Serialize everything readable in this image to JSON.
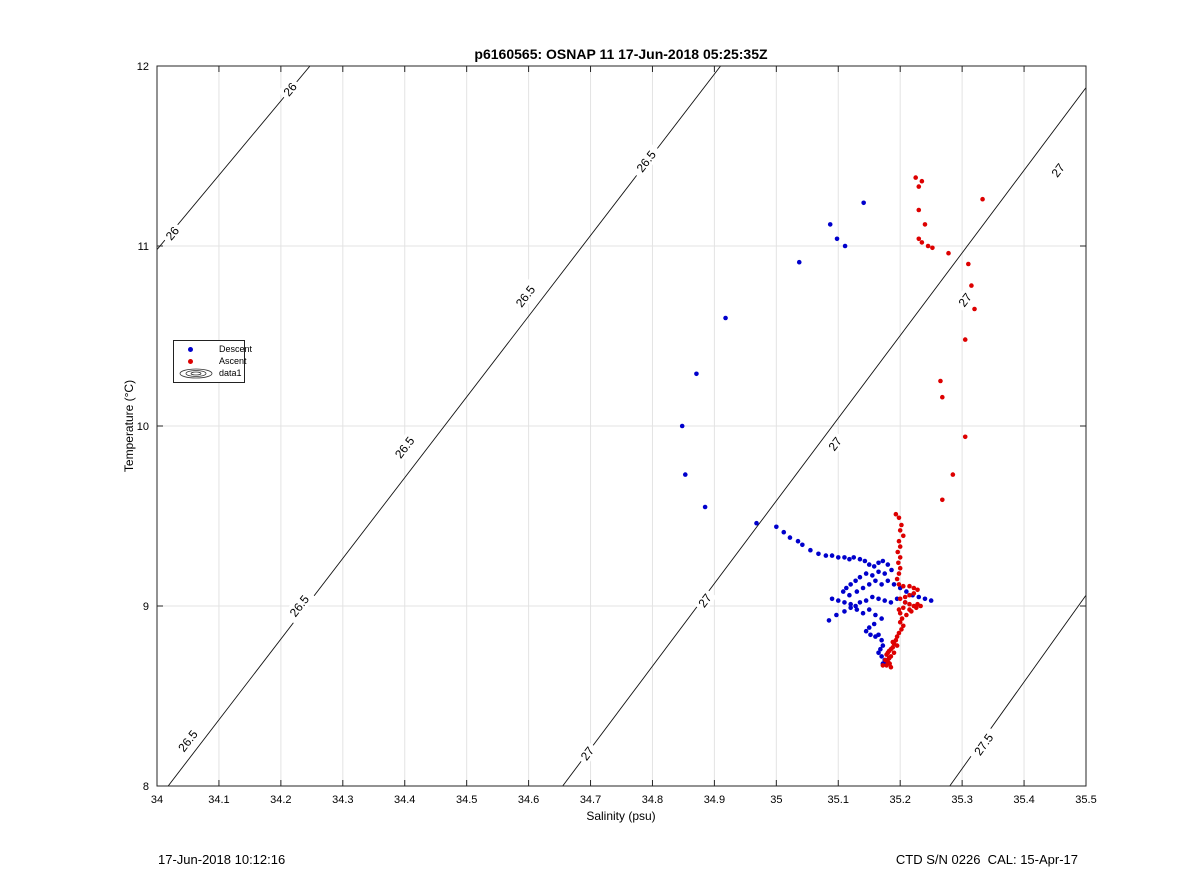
{
  "figure": {
    "title": "p6160565: OSNAP 11 17-Jun-2018 05:25:35Z",
    "footer_left": "17-Jun-2018 10:12:16",
    "footer_right": "CTD S/N 0226  CAL: 15-Apr-17"
  },
  "legend": [
    {
      "label": "Descent",
      "color": "#0000cc"
    },
    {
      "label": "Ascent",
      "color": "#dd0000"
    },
    {
      "label": "data1",
      "color": "#333333"
    }
  ],
  "chart_data": {
    "type": "scatter",
    "title": "p6160565: OSNAP 11 17-Jun-2018 05:25:35Z",
    "xlabel": "Salinity (psu)",
    "ylabel": "Temperature (°C)",
    "xlim": [
      34,
      35.5
    ],
    "ylim": [
      8,
      12
    ],
    "xticks": [
      "34",
      "34.1",
      "34.2",
      "34.3",
      "34.4",
      "34.5",
      "34.6",
      "34.7",
      "34.8",
      "34.9",
      "35",
      "35.1",
      "35.2",
      "35.3",
      "35.4",
      "35.5"
    ],
    "yticks": [
      "8",
      "9",
      "10",
      "11",
      "12"
    ],
    "grid": true,
    "legend_placement": "left-middle",
    "contours": [
      {
        "level": "26",
        "points": [
          [
            34.0,
            10.98
          ],
          [
            34.247,
            12.0
          ]
        ],
        "labels": [
          [
            34.025,
            11.07
          ],
          [
            34.215,
            11.87
          ]
        ]
      },
      {
        "level": "26.5",
        "points": [
          [
            34.018,
            8.0
          ],
          [
            34.91,
            12.0
          ]
        ],
        "labels": [
          [
            34.05,
            8.25
          ],
          [
            34.23,
            9.0
          ],
          [
            34.4,
            9.88
          ],
          [
            34.595,
            10.72
          ],
          [
            34.79,
            11.47
          ]
        ]
      },
      {
        "level": "27",
        "points": [
          [
            34.655,
            8.0
          ],
          [
            35.5,
            11.88
          ]
        ],
        "labels": [
          [
            34.695,
            8.18
          ],
          [
            34.885,
            9.03
          ],
          [
            35.095,
            9.9
          ],
          [
            35.305,
            10.7
          ],
          [
            35.455,
            11.42
          ]
        ]
      },
      {
        "level": "27.5",
        "points": [
          [
            35.28,
            8.0
          ],
          [
            35.5,
            9.06
          ]
        ],
        "labels": [
          [
            35.335,
            8.23
          ]
        ]
      }
    ],
    "series": [
      {
        "name": "Descent",
        "color": "#0000cc",
        "points": [
          [
            35.141,
            11.24
          ],
          [
            35.087,
            11.12
          ],
          [
            35.098,
            11.04
          ],
          [
            35.111,
            11.0
          ],
          [
            35.037,
            10.91
          ],
          [
            34.918,
            10.6
          ],
          [
            34.871,
            10.29
          ],
          [
            34.848,
            10.0
          ],
          [
            34.853,
            9.73
          ],
          [
            34.885,
            9.55
          ],
          [
            34.968,
            9.46
          ],
          [
            35.0,
            9.44
          ],
          [
            35.012,
            9.41
          ],
          [
            35.022,
            9.38
          ],
          [
            35.035,
            9.36
          ],
          [
            35.042,
            9.34
          ],
          [
            35.055,
            9.31
          ],
          [
            35.068,
            9.29
          ],
          [
            35.08,
            9.28
          ],
          [
            35.09,
            9.28
          ],
          [
            35.1,
            9.27
          ],
          [
            35.11,
            9.27
          ],
          [
            35.118,
            9.26
          ],
          [
            35.125,
            9.27
          ],
          [
            35.135,
            9.26
          ],
          [
            35.143,
            9.25
          ],
          [
            35.15,
            9.23
          ],
          [
            35.158,
            9.22
          ],
          [
            35.165,
            9.24
          ],
          [
            35.172,
            9.25
          ],
          [
            35.18,
            9.23
          ],
          [
            35.186,
            9.2
          ],
          [
            35.175,
            9.18
          ],
          [
            35.165,
            9.19
          ],
          [
            35.155,
            9.17
          ],
          [
            35.145,
            9.18
          ],
          [
            35.135,
            9.16
          ],
          [
            35.128,
            9.14
          ],
          [
            35.12,
            9.12
          ],
          [
            35.113,
            9.1
          ],
          [
            35.108,
            9.08
          ],
          [
            35.118,
            9.06
          ],
          [
            35.13,
            9.08
          ],
          [
            35.14,
            9.1
          ],
          [
            35.15,
            9.12
          ],
          [
            35.16,
            9.14
          ],
          [
            35.17,
            9.12
          ],
          [
            35.18,
            9.14
          ],
          [
            35.19,
            9.12
          ],
          [
            35.2,
            9.1
          ],
          [
            35.21,
            9.08
          ],
          [
            35.22,
            9.06
          ],
          [
            35.23,
            9.05
          ],
          [
            35.24,
            9.04
          ],
          [
            35.25,
            9.03
          ],
          [
            35.208,
            9.02
          ],
          [
            35.195,
            9.04
          ],
          [
            35.185,
            9.02
          ],
          [
            35.175,
            9.03
          ],
          [
            35.165,
            9.04
          ],
          [
            35.155,
            9.05
          ],
          [
            35.145,
            9.03
          ],
          [
            35.135,
            9.02
          ],
          [
            35.128,
            9.0
          ],
          [
            35.12,
            9.01
          ],
          [
            35.11,
            9.02
          ],
          [
            35.1,
            9.03
          ],
          [
            35.09,
            9.04
          ],
          [
            35.085,
            8.92
          ],
          [
            35.097,
            8.95
          ],
          [
            35.11,
            8.97
          ],
          [
            35.12,
            8.99
          ],
          [
            35.13,
            8.98
          ],
          [
            35.14,
            8.96
          ],
          [
            35.15,
            8.98
          ],
          [
            35.16,
            8.95
          ],
          [
            35.17,
            8.93
          ],
          [
            35.158,
            8.9
          ],
          [
            35.15,
            8.88
          ],
          [
            35.145,
            8.86
          ],
          [
            35.152,
            8.84
          ],
          [
            35.16,
            8.83
          ],
          [
            35.165,
            8.84
          ],
          [
            35.17,
            8.81
          ],
          [
            35.172,
            8.78
          ],
          [
            35.168,
            8.76
          ],
          [
            35.165,
            8.74
          ],
          [
            35.17,
            8.72
          ],
          [
            35.175,
            8.7
          ],
          [
            35.172,
            8.68
          ],
          [
            35.178,
            8.69
          ],
          [
            35.182,
            8.71
          ]
        ]
      },
      {
        "name": "Ascent",
        "color": "#dd0000",
        "points": [
          [
            35.225,
            11.38
          ],
          [
            35.235,
            11.36
          ],
          [
            35.23,
            11.33
          ],
          [
            35.333,
            11.26
          ],
          [
            35.23,
            11.2
          ],
          [
            35.24,
            11.12
          ],
          [
            35.23,
            11.04
          ],
          [
            35.235,
            11.02
          ],
          [
            35.245,
            11.0
          ],
          [
            35.252,
            10.99
          ],
          [
            35.278,
            10.96
          ],
          [
            35.31,
            10.9
          ],
          [
            35.315,
            10.78
          ],
          [
            35.32,
            10.65
          ],
          [
            35.305,
            10.48
          ],
          [
            35.265,
            10.25
          ],
          [
            35.268,
            10.16
          ],
          [
            35.305,
            9.94
          ],
          [
            35.285,
            9.73
          ],
          [
            35.268,
            9.59
          ],
          [
            35.193,
            9.51
          ],
          [
            35.198,
            9.49
          ],
          [
            35.202,
            9.45
          ],
          [
            35.2,
            9.42
          ],
          [
            35.205,
            9.39
          ],
          [
            35.198,
            9.36
          ],
          [
            35.2,
            9.33
          ],
          [
            35.196,
            9.3
          ],
          [
            35.2,
            9.27
          ],
          [
            35.197,
            9.24
          ],
          [
            35.2,
            9.21
          ],
          [
            35.198,
            9.18
          ],
          [
            35.195,
            9.15
          ],
          [
            35.198,
            9.12
          ],
          [
            35.205,
            9.11
          ],
          [
            35.215,
            9.11
          ],
          [
            35.222,
            9.1
          ],
          [
            35.228,
            9.09
          ],
          [
            35.222,
            9.07
          ],
          [
            35.215,
            9.06
          ],
          [
            35.208,
            9.05
          ],
          [
            35.2,
            9.04
          ],
          [
            35.208,
            9.02
          ],
          [
            35.215,
            9.01
          ],
          [
            35.222,
            9.0
          ],
          [
            35.228,
            9.01
          ],
          [
            35.233,
            9.0
          ],
          [
            35.226,
            8.99
          ],
          [
            35.215,
            8.98
          ],
          [
            35.205,
            8.99
          ],
          [
            35.198,
            8.98
          ],
          [
            35.2,
            8.96
          ],
          [
            35.21,
            8.95
          ],
          [
            35.218,
            8.97
          ],
          [
            35.203,
            8.93
          ],
          [
            35.2,
            8.91
          ],
          [
            35.205,
            8.89
          ],
          [
            35.202,
            8.87
          ],
          [
            35.198,
            8.85
          ],
          [
            35.195,
            8.83
          ],
          [
            35.193,
            8.81
          ],
          [
            35.19,
            8.79
          ],
          [
            35.188,
            8.77
          ],
          [
            35.185,
            8.76
          ],
          [
            35.182,
            8.75
          ],
          [
            35.18,
            8.74
          ],
          [
            35.178,
            8.73
          ],
          [
            35.185,
            8.72
          ],
          [
            35.182,
            8.71
          ],
          [
            35.176,
            8.7
          ],
          [
            35.18,
            8.69
          ],
          [
            35.183,
            8.68
          ],
          [
            35.178,
            8.67
          ],
          [
            35.172,
            8.67
          ],
          [
            35.185,
            8.66
          ],
          [
            35.19,
            8.74
          ],
          [
            35.195,
            8.78
          ],
          [
            35.188,
            8.8
          ]
        ]
      }
    ]
  }
}
